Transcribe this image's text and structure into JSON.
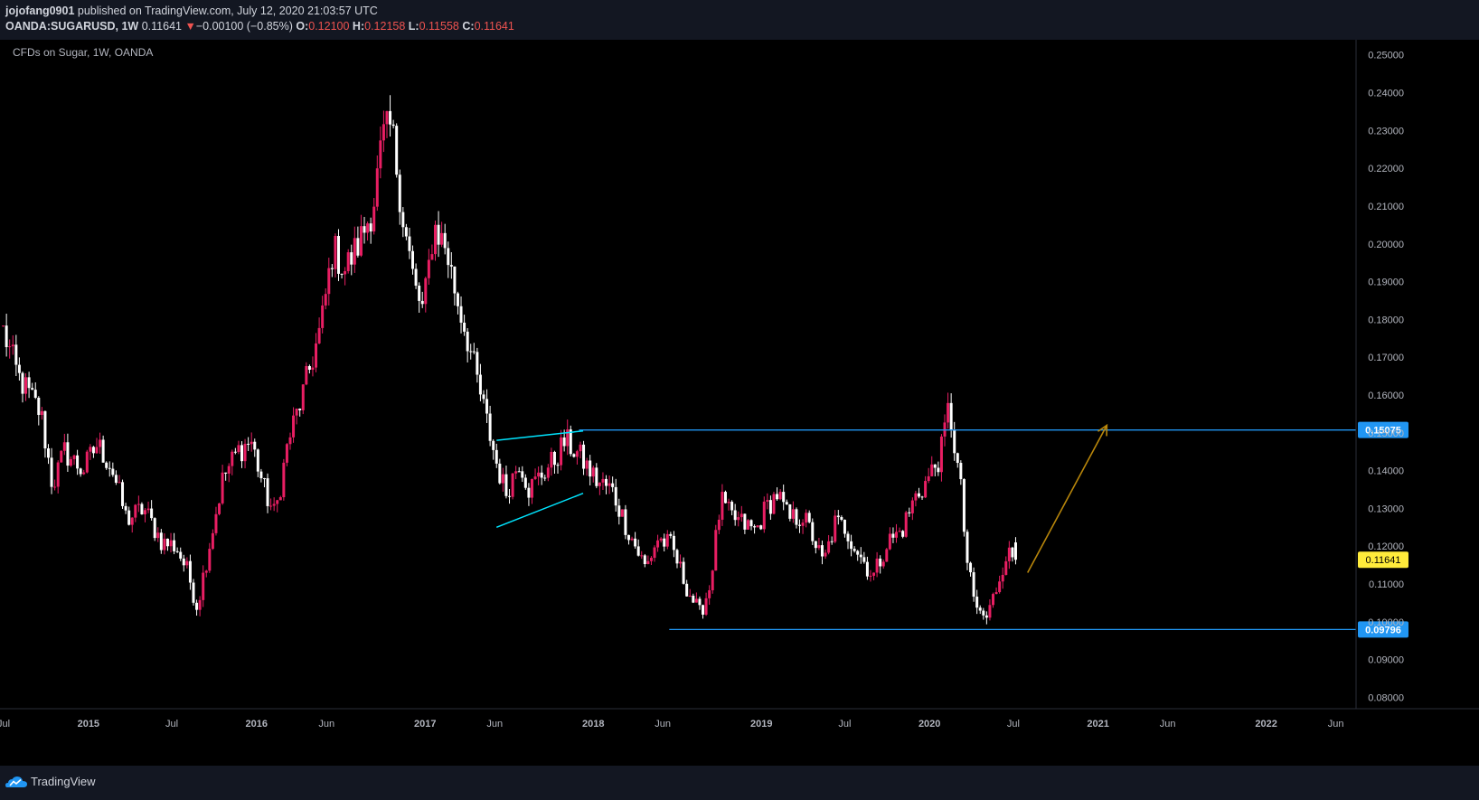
{
  "header": {
    "author": "jojofang0901",
    "published_text": "published on TradingView.com, July 12, 2020 21:03:57 UTC",
    "symbol": "OANDA:SUGARUSD, 1W",
    "last": "0.11641",
    "change_arrow": "▼",
    "change": "−0.00100 (−0.85%)",
    "open_label": "O:",
    "open": "0.12100",
    "high_label": "H:",
    "high": "0.12158",
    "low_label": "L:",
    "low": "0.11558",
    "close_label": "C:",
    "close": "0.11641"
  },
  "chart_title": "CFDs on Sugar, 1W, OANDA",
  "footer": {
    "brand": "TradingView"
  },
  "colors": {
    "up": "#e91e63",
    "down": "#ffffff",
    "level": "#2196f3",
    "wedge": "#00e5ff",
    "arrow": "#b8860b",
    "last_price_bg": "#ffeb3b",
    "level_label_bg": "#2196f3"
  },
  "chart_data": {
    "type": "candlestick",
    "title": "CFDs on Sugar, 1W, OANDA",
    "timeframe": "1W",
    "price_axis_ticks": [
      "0.25000",
      "0.24000",
      "0.23000",
      "0.22000",
      "0.21000",
      "0.20000",
      "0.19000",
      "0.18000",
      "0.17000",
      "0.16000",
      "0.15000",
      "0.14000",
      "0.13000",
      "0.12000",
      "0.11000",
      "0.10000",
      "0.09000",
      "0.08000"
    ],
    "time_axis_ticks": [
      {
        "label": "Jul",
        "date": "2014-07-01"
      },
      {
        "label": "2015",
        "date": "2015-01-01"
      },
      {
        "label": "Jul",
        "date": "2015-07-01"
      },
      {
        "label": "2016",
        "date": "2016-01-01"
      },
      {
        "label": "Jun",
        "date": "2016-06-01"
      },
      {
        "label": "2017",
        "date": "2017-01-01"
      },
      {
        "label": "Jun",
        "date": "2017-06-01"
      },
      {
        "label": "2018",
        "date": "2018-01-01"
      },
      {
        "label": "Jun",
        "date": "2018-06-01"
      },
      {
        "label": "2019",
        "date": "2019-01-01"
      },
      {
        "label": "Jul",
        "date": "2019-07-01"
      },
      {
        "label": "2020",
        "date": "2020-01-01"
      },
      {
        "label": "Jul",
        "date": "2020-07-01"
      },
      {
        "label": "2021",
        "date": "2021-01-01"
      },
      {
        "label": "Jun",
        "date": "2021-06-01"
      },
      {
        "label": "2022",
        "date": "2022-01-01"
      },
      {
        "label": "Jun",
        "date": "2022-06-01"
      }
    ],
    "ylim": [
      0.077,
      0.254
    ],
    "xlim": [
      "2014-06-23",
      "2022-07-15"
    ],
    "price_path": [
      [
        "2014-06-30",
        0.177
      ],
      [
        "2014-08-01",
        0.165
      ],
      [
        "2014-09-20",
        0.155
      ],
      [
        "2014-10-15",
        0.136
      ],
      [
        "2014-11-10",
        0.145
      ],
      [
        "2014-12-20",
        0.14
      ],
      [
        "2015-01-20",
        0.147
      ],
      [
        "2015-02-20",
        0.141
      ],
      [
        "2015-03-25",
        0.127
      ],
      [
        "2015-05-01",
        0.13
      ],
      [
        "2015-06-10",
        0.121
      ],
      [
        "2015-07-10",
        0.12
      ],
      [
        "2015-08-05",
        0.113
      ],
      [
        "2015-08-25",
        0.104
      ],
      [
        "2015-09-15",
        0.117
      ],
      [
        "2015-10-20",
        0.138
      ],
      [
        "2015-11-20",
        0.145
      ],
      [
        "2015-12-20",
        0.148
      ],
      [
        "2016-01-20",
        0.134
      ],
      [
        "2016-02-10",
        0.128
      ],
      [
        "2016-03-10",
        0.148
      ],
      [
        "2016-04-10",
        0.16
      ],
      [
        "2016-05-20",
        0.178
      ],
      [
        "2016-06-15",
        0.199
      ],
      [
        "2016-07-10",
        0.193
      ],
      [
        "2016-08-10",
        0.2
      ],
      [
        "2016-09-10",
        0.21
      ],
      [
        "2016-10-01",
        0.228
      ],
      [
        "2016-10-20",
        0.231
      ],
      [
        "2016-11-15",
        0.206
      ],
      [
        "2016-12-10",
        0.188
      ],
      [
        "2016-12-28",
        0.182
      ],
      [
        "2017-01-20",
        0.205
      ],
      [
        "2017-02-15",
        0.199
      ],
      [
        "2017-03-10",
        0.186
      ],
      [
        "2017-04-01",
        0.176
      ],
      [
        "2017-05-01",
        0.16
      ],
      [
        "2017-06-05",
        0.142
      ],
      [
        "2017-06-25",
        0.134
      ],
      [
        "2017-07-25",
        0.143
      ],
      [
        "2017-08-15",
        0.135
      ],
      [
        "2017-09-10",
        0.139
      ],
      [
        "2017-10-10",
        0.143
      ],
      [
        "2017-11-01",
        0.148
      ],
      [
        "2017-12-01",
        0.144
      ],
      [
        "2018-01-10",
        0.137
      ],
      [
        "2018-02-10",
        0.135
      ],
      [
        "2018-03-15",
        0.125
      ],
      [
        "2018-04-25",
        0.114
      ],
      [
        "2018-05-20",
        0.122
      ],
      [
        "2018-06-20",
        0.12
      ],
      [
        "2018-07-20",
        0.11
      ],
      [
        "2018-08-20",
        0.102
      ],
      [
        "2018-09-10",
        0.109
      ],
      [
        "2018-10-05",
        0.132
      ],
      [
        "2018-10-25",
        0.128
      ],
      [
        "2018-11-20",
        0.126
      ],
      [
        "2018-12-20",
        0.124
      ],
      [
        "2019-01-10",
        0.13
      ],
      [
        "2019-02-05",
        0.134
      ],
      [
        "2019-03-01",
        0.127
      ],
      [
        "2019-04-01",
        0.128
      ],
      [
        "2019-04-25",
        0.122
      ],
      [
        "2019-05-15",
        0.115
      ],
      [
        "2019-06-10",
        0.126
      ],
      [
        "2019-07-01",
        0.125
      ],
      [
        "2019-08-01",
        0.118
      ],
      [
        "2019-09-01",
        0.112
      ],
      [
        "2019-10-01",
        0.121
      ],
      [
        "2019-11-01",
        0.124
      ],
      [
        "2019-12-01",
        0.133
      ],
      [
        "2019-12-25",
        0.137
      ],
      [
        "2020-01-25",
        0.144
      ],
      [
        "2020-02-12",
        0.157
      ],
      [
        "2020-02-25",
        0.146
      ],
      [
        "2020-03-10",
        0.134
      ],
      [
        "2020-03-20",
        0.118
      ],
      [
        "2020-04-05",
        0.106
      ],
      [
        "2020-04-20",
        0.102
      ],
      [
        "2020-05-05",
        0.101
      ],
      [
        "2020-05-25",
        0.109
      ],
      [
        "2020-06-15",
        0.118
      ],
      [
        "2020-07-10",
        0.1164
      ]
    ],
    "levels": [
      {
        "price": 0.15075,
        "label": "0.15075"
      },
      {
        "price": 0.09796,
        "label": "0.09796"
      }
    ],
    "last_price": {
      "price": 0.11641,
      "label": "0.11641"
    },
    "drawings": [
      {
        "type": "trendline",
        "from": [
          "2017-06-05",
          0.148
        ],
        "to": [
          "2017-12-10",
          0.1505
        ]
      },
      {
        "type": "trendline",
        "from": [
          "2017-06-05",
          0.125
        ],
        "to": [
          "2017-12-10",
          0.134
        ]
      },
      {
        "type": "arrow",
        "from": [
          "2020-08-01",
          0.113
        ],
        "to": [
          "2021-01-20",
          0.152
        ]
      }
    ]
  }
}
